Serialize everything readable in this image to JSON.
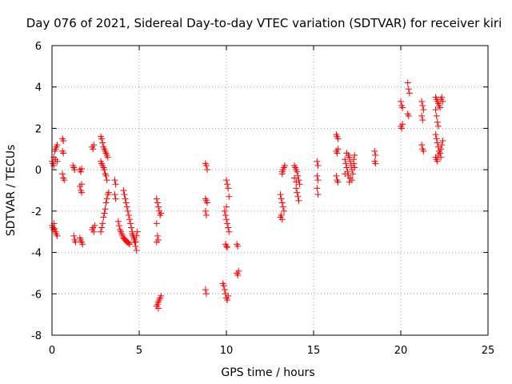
{
  "chart_data": {
    "type": "scatter",
    "title": "Day 076 of 2021, Sidereal Day-to-day VTEC variation (SDTVAR) for receiver kiri",
    "xlabel": "GPS time / hours",
    "ylabel": "SDTVAR / TECUs",
    "xlim": [
      0,
      25
    ],
    "ylim": [
      -8,
      6
    ],
    "xticks": [
      0,
      5,
      10,
      15,
      20,
      25
    ],
    "yticks": [
      -8,
      -6,
      -4,
      -2,
      0,
      2,
      4,
      6
    ],
    "grid": true,
    "marker": "plus",
    "color": "#ff0000",
    "series": [
      {
        "name": "SDTVAR",
        "points": [
          [
            0.0,
            0.4
          ],
          [
            0.05,
            0.3
          ],
          [
            0.1,
            0.6
          ],
          [
            0.15,
            0.9
          ],
          [
            0.2,
            1.0
          ],
          [
            0.25,
            1.1
          ],
          [
            0.3,
            1.2
          ],
          [
            0.1,
            0.2
          ],
          [
            0.2,
            0.5
          ],
          [
            0.3,
            0.4
          ],
          [
            0.0,
            -2.7
          ],
          [
            0.05,
            -2.8
          ],
          [
            0.1,
            -2.9
          ],
          [
            0.15,
            -2.85
          ],
          [
            0.2,
            -3.0
          ],
          [
            0.25,
            -3.1
          ],
          [
            0.3,
            -3.2
          ],
          [
            0.12,
            -2.6
          ],
          [
            0.6,
            1.5
          ],
          [
            0.65,
            1.4
          ],
          [
            0.6,
            0.9
          ],
          [
            0.65,
            0.8
          ],
          [
            0.6,
            -0.2
          ],
          [
            0.65,
            -0.4
          ],
          [
            0.7,
            -0.5
          ],
          [
            1.2,
            0.2
          ],
          [
            1.25,
            0.1
          ],
          [
            1.3,
            0.0
          ],
          [
            1.25,
            -3.2
          ],
          [
            1.3,
            -3.4
          ],
          [
            1.35,
            -3.5
          ],
          [
            1.6,
            0.0
          ],
          [
            1.65,
            -0.1
          ],
          [
            1.7,
            0.05
          ],
          [
            1.6,
            -0.8
          ],
          [
            1.65,
            -1.0
          ],
          [
            1.7,
            -1.1
          ],
          [
            1.7,
            -0.7
          ],
          [
            1.6,
            -3.3
          ],
          [
            1.65,
            -3.4
          ],
          [
            1.7,
            -3.5
          ],
          [
            1.75,
            -3.6
          ],
          [
            2.3,
            1.1
          ],
          [
            2.35,
            1.0
          ],
          [
            2.4,
            1.2
          ],
          [
            2.3,
            -2.9
          ],
          [
            2.35,
            -2.8
          ],
          [
            2.4,
            -3.0
          ],
          [
            2.45,
            -2.7
          ],
          [
            2.8,
            1.6
          ],
          [
            2.85,
            1.5
          ],
          [
            2.9,
            1.3
          ],
          [
            2.95,
            1.1
          ],
          [
            3.0,
            1.0
          ],
          [
            3.05,
            0.9
          ],
          [
            3.1,
            0.8
          ],
          [
            3.15,
            0.7
          ],
          [
            3.2,
            0.6
          ],
          [
            2.8,
            0.4
          ],
          [
            2.85,
            0.3
          ],
          [
            2.9,
            0.2
          ],
          [
            2.95,
            0.1
          ],
          [
            3.0,
            0.0
          ],
          [
            3.05,
            -0.2
          ],
          [
            3.1,
            -0.3
          ],
          [
            3.15,
            -0.5
          ],
          [
            2.8,
            -3.0
          ],
          [
            2.85,
            -2.8
          ],
          [
            2.9,
            -2.6
          ],
          [
            2.95,
            -2.3
          ],
          [
            3.0,
            -2.1
          ],
          [
            3.05,
            -1.9
          ],
          [
            3.1,
            -1.6
          ],
          [
            3.15,
            -1.4
          ],
          [
            3.2,
            -1.2
          ],
          [
            3.25,
            -1.1
          ],
          [
            3.6,
            -0.5
          ],
          [
            3.65,
            -0.7
          ],
          [
            3.6,
            -1.2
          ],
          [
            3.65,
            -1.4
          ],
          [
            3.8,
            -2.5
          ],
          [
            3.85,
            -2.7
          ],
          [
            3.9,
            -2.9
          ],
          [
            3.95,
            -3.0
          ],
          [
            4.0,
            -3.1
          ],
          [
            4.05,
            -3.2
          ],
          [
            4.1,
            -3.3
          ],
          [
            4.15,
            -3.35
          ],
          [
            4.2,
            -3.4
          ],
          [
            4.25,
            -3.45
          ],
          [
            4.3,
            -3.5
          ],
          [
            4.35,
            -3.5
          ],
          [
            4.4,
            -3.55
          ],
          [
            4.45,
            -3.6
          ],
          [
            4.1,
            -1.0
          ],
          [
            4.15,
            -1.2
          ],
          [
            4.2,
            -1.4
          ],
          [
            4.25,
            -1.6
          ],
          [
            4.3,
            -1.8
          ],
          [
            4.35,
            -2.0
          ],
          [
            4.4,
            -2.2
          ],
          [
            4.45,
            -2.4
          ],
          [
            4.5,
            -2.6
          ],
          [
            4.55,
            -2.8
          ],
          [
            4.6,
            -3.0
          ],
          [
            4.65,
            -3.2
          ],
          [
            4.7,
            -3.4
          ],
          [
            4.75,
            -3.5
          ],
          [
            4.8,
            -3.7
          ],
          [
            4.85,
            -3.9
          ],
          [
            4.6,
            -3.1
          ],
          [
            4.65,
            -3.2
          ],
          [
            4.7,
            -3.3
          ],
          [
            4.75,
            -3.4
          ],
          [
            4.8,
            -3.5
          ],
          [
            4.85,
            -3.2
          ],
          [
            4.9,
            -3.0
          ],
          [
            6.0,
            -1.4
          ],
          [
            6.05,
            -1.6
          ],
          [
            6.1,
            -1.8
          ],
          [
            6.15,
            -2.0
          ],
          [
            6.2,
            -2.2
          ],
          [
            6.25,
            -2.1
          ],
          [
            6.0,
            -2.6
          ],
          [
            6.05,
            -3.2
          ],
          [
            6.1,
            -3.4
          ],
          [
            6.0,
            -3.5
          ],
          [
            6.0,
            -6.6
          ],
          [
            6.05,
            -6.5
          ],
          [
            6.1,
            -6.4
          ],
          [
            6.15,
            -6.3
          ],
          [
            6.2,
            -6.2
          ],
          [
            6.25,
            -6.1
          ],
          [
            6.1,
            -6.7
          ],
          [
            8.8,
            0.3
          ],
          [
            8.85,
            0.2
          ],
          [
            8.9,
            0.0
          ],
          [
            8.8,
            -1.4
          ],
          [
            8.85,
            -1.5
          ],
          [
            8.9,
            -1.6
          ],
          [
            8.8,
            -2.0
          ],
          [
            8.85,
            -2.2
          ],
          [
            8.8,
            -5.8
          ],
          [
            8.85,
            -6.0
          ],
          [
            9.9,
            -2.0
          ],
          [
            9.95,
            -2.2
          ],
          [
            10.0,
            -2.4
          ],
          [
            10.05,
            -2.6
          ],
          [
            10.1,
            -2.8
          ],
          [
            10.15,
            -3.0
          ],
          [
            9.95,
            -3.6
          ],
          [
            10.0,
            -3.7
          ],
          [
            10.05,
            -3.75
          ],
          [
            10.0,
            -0.5
          ],
          [
            10.05,
            -0.7
          ],
          [
            10.1,
            -0.9
          ],
          [
            10.15,
            -1.3
          ],
          [
            10.0,
            -1.8
          ],
          [
            9.8,
            -5.5
          ],
          [
            9.85,
            -5.6
          ],
          [
            9.9,
            -5.8
          ],
          [
            9.95,
            -6.0
          ],
          [
            10.0,
            -6.2
          ],
          [
            10.05,
            -6.3
          ],
          [
            10.1,
            -6.1
          ],
          [
            10.6,
            -3.6
          ],
          [
            10.65,
            -3.7
          ],
          [
            10.6,
            -5.0
          ],
          [
            10.65,
            -5.1
          ],
          [
            10.7,
            -4.9
          ],
          [
            13.1,
            -1.2
          ],
          [
            13.15,
            -1.4
          ],
          [
            13.2,
            -1.6
          ],
          [
            13.25,
            -1.8
          ],
          [
            13.3,
            -2.0
          ],
          [
            13.15,
            -2.2
          ],
          [
            13.2,
            -2.4
          ],
          [
            13.1,
            -2.3
          ],
          [
            13.2,
            -0.1
          ],
          [
            13.25,
            0.0
          ],
          [
            13.3,
            0.1
          ],
          [
            13.35,
            0.2
          ],
          [
            13.2,
            -0.2
          ],
          [
            13.9,
            0.2
          ],
          [
            13.95,
            0.1
          ],
          [
            14.0,
            0.0
          ],
          [
            14.05,
            -0.1
          ],
          [
            14.1,
            -0.3
          ],
          [
            14.15,
            -0.5
          ],
          [
            14.2,
            -0.7
          ],
          [
            14.0,
            -0.9
          ],
          [
            14.05,
            -1.1
          ],
          [
            14.1,
            -1.3
          ],
          [
            14.15,
            -1.5
          ],
          [
            13.9,
            -0.4
          ],
          [
            14.0,
            -0.6
          ],
          [
            15.2,
            0.4
          ],
          [
            15.25,
            0.2
          ],
          [
            15.2,
            -0.3
          ],
          [
            15.25,
            -0.5
          ],
          [
            15.2,
            -0.9
          ],
          [
            15.25,
            -1.2
          ],
          [
            16.3,
            1.7
          ],
          [
            16.35,
            1.6
          ],
          [
            16.4,
            1.5
          ],
          [
            16.3,
            0.9
          ],
          [
            16.35,
            0.8
          ],
          [
            16.4,
            1.0
          ],
          [
            16.3,
            -0.3
          ],
          [
            16.35,
            -0.5
          ],
          [
            16.4,
            -0.6
          ],
          [
            16.8,
            0.5
          ],
          [
            16.85,
            0.3
          ],
          [
            16.9,
            0.1
          ],
          [
            16.95,
            -0.1
          ],
          [
            17.0,
            -0.3
          ],
          [
            17.05,
            0.6
          ],
          [
            17.1,
            0.4
          ],
          [
            17.15,
            0.2
          ],
          [
            17.2,
            0.0
          ],
          [
            17.25,
            -0.2
          ],
          [
            17.3,
            0.5
          ],
          [
            17.35,
            0.7
          ],
          [
            16.9,
            0.8
          ],
          [
            17.0,
            0.7
          ],
          [
            17.1,
            -0.4
          ],
          [
            17.2,
            -0.5
          ],
          [
            17.3,
            0.3
          ],
          [
            17.35,
            0.1
          ],
          [
            16.8,
            -0.2
          ],
          [
            17.05,
            -0.6
          ],
          [
            18.5,
            0.9
          ],
          [
            18.55,
            0.7
          ],
          [
            18.5,
            0.4
          ],
          [
            18.55,
            0.3
          ],
          [
            20.0,
            3.3
          ],
          [
            20.05,
            3.1
          ],
          [
            20.1,
            3.0
          ],
          [
            20.0,
            2.1
          ],
          [
            20.05,
            2.0
          ],
          [
            20.1,
            2.2
          ],
          [
            20.4,
            4.2
          ],
          [
            20.45,
            3.9
          ],
          [
            20.5,
            3.7
          ],
          [
            20.4,
            2.7
          ],
          [
            20.45,
            2.6
          ],
          [
            21.2,
            3.3
          ],
          [
            21.25,
            3.1
          ],
          [
            21.3,
            2.9
          ],
          [
            21.2,
            2.6
          ],
          [
            21.25,
            2.4
          ],
          [
            21.2,
            1.2
          ],
          [
            21.25,
            1.0
          ],
          [
            21.3,
            0.9
          ],
          [
            22.0,
            3.5
          ],
          [
            22.05,
            3.4
          ],
          [
            22.1,
            3.3
          ],
          [
            22.15,
            3.2
          ],
          [
            22.2,
            3.1
          ],
          [
            22.25,
            3.0
          ],
          [
            22.3,
            3.4
          ],
          [
            22.35,
            3.5
          ],
          [
            22.4,
            3.3
          ],
          [
            22.0,
            2.9
          ],
          [
            22.05,
            2.6
          ],
          [
            22.1,
            2.3
          ],
          [
            22.15,
            2.1
          ],
          [
            22.0,
            1.7
          ],
          [
            22.05,
            1.5
          ],
          [
            22.1,
            1.3
          ],
          [
            22.15,
            1.1
          ],
          [
            22.2,
            0.9
          ],
          [
            22.25,
            0.8
          ],
          [
            22.3,
            1.0
          ],
          [
            22.35,
            1.2
          ],
          [
            22.4,
            1.4
          ],
          [
            22.0,
            0.6
          ],
          [
            22.05,
            0.5
          ],
          [
            22.1,
            0.4
          ],
          [
            22.15,
            0.7
          ],
          [
            22.3,
            0.6
          ]
        ]
      }
    ]
  }
}
